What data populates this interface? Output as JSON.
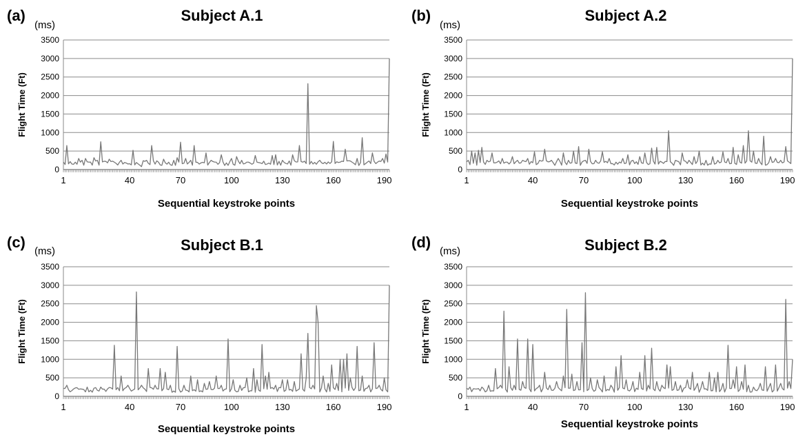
{
  "figure": {
    "background": "#ffffff",
    "line_color": "#777777",
    "grid_color": "#8a8a8a"
  },
  "chart_data": [
    {
      "type": "line",
      "panel_label": "(a)",
      "title": "Subject A.1",
      "unit": "(ms)",
      "xlabel": "Sequential keystroke points",
      "ylabel": "Flight Time (Ft)",
      "yticks": [
        "0",
        "500",
        "1000",
        "1500",
        "2000",
        "2500",
        "3000",
        "3500"
      ],
      "xticks": [
        "1",
        "40",
        "70",
        "100",
        "130",
        "160",
        "190"
      ],
      "ylim": [
        0,
        3500
      ],
      "grid": true,
      "n_points": 193,
      "spikes": [
        [
          3,
          650
        ],
        [
          8,
          200
        ],
        [
          10,
          300
        ],
        [
          12,
          250
        ],
        [
          14,
          300
        ],
        [
          16,
          200
        ],
        [
          19,
          320
        ],
        [
          21,
          250
        ],
        [
          23,
          750
        ],
        [
          26,
          220
        ],
        [
          28,
          280
        ],
        [
          31,
          200
        ],
        [
          35,
          250
        ],
        [
          39,
          150
        ],
        [
          42,
          520
        ],
        [
          47,
          80
        ],
        [
          50,
          250
        ],
        [
          53,
          650
        ],
        [
          57,
          200
        ],
        [
          60,
          280
        ],
        [
          63,
          200
        ],
        [
          66,
          250
        ],
        [
          68,
          320
        ],
        [
          70,
          740
        ],
        [
          73,
          300
        ],
        [
          76,
          250
        ],
        [
          78,
          650
        ],
        [
          82,
          180
        ],
        [
          85,
          450
        ],
        [
          88,
          250
        ],
        [
          91,
          200
        ],
        [
          94,
          400
        ],
        [
          97,
          180
        ],
        [
          100,
          300
        ],
        [
          103,
          350
        ],
        [
          106,
          250
        ],
        [
          110,
          200
        ],
        [
          114,
          380
        ],
        [
          117,
          180
        ],
        [
          121,
          150
        ],
        [
          124,
          380
        ],
        [
          126,
          400
        ],
        [
          130,
          250
        ],
        [
          133,
          150
        ],
        [
          136,
          400
        ],
        [
          140,
          650
        ],
        [
          142,
          200
        ],
        [
          145,
          2320
        ],
        [
          148,
          150
        ],
        [
          152,
          250
        ],
        [
          156,
          150
        ],
        [
          160,
          760
        ],
        [
          164,
          200
        ],
        [
          167,
          550
        ],
        [
          171,
          200
        ],
        [
          174,
          300
        ],
        [
          177,
          860
        ],
        [
          180,
          200
        ],
        [
          183,
          450
        ],
        [
          186,
          200
        ],
        [
          189,
          300
        ],
        [
          191,
          420
        ],
        [
          193,
          3000
        ]
      ]
    },
    {
      "type": "line",
      "panel_label": "(b)",
      "title": "Subject A.2",
      "unit": "(ms)",
      "xlabel": "Sequential keystroke points",
      "ylabel": "Flight Time (Ft)",
      "yticks": [
        "0",
        "500",
        "1000",
        "1500",
        "2000",
        "2500",
        "3000",
        "3500"
      ],
      "xticks": [
        "1",
        "40",
        "70",
        "100",
        "130",
        "160",
        "190"
      ],
      "ylim": [
        0,
        3500
      ],
      "grid": true,
      "n_points": 193,
      "spikes": [
        [
          2,
          250
        ],
        [
          4,
          500
        ],
        [
          6,
          450
        ],
        [
          8,
          520
        ],
        [
          10,
          600
        ],
        [
          13,
          250
        ],
        [
          16,
          450
        ],
        [
          19,
          200
        ],
        [
          22,
          300
        ],
        [
          25,
          200
        ],
        [
          28,
          350
        ],
        [
          31,
          250
        ],
        [
          34,
          250
        ],
        [
          37,
          300
        ],
        [
          41,
          480
        ],
        [
          44,
          250
        ],
        [
          47,
          550
        ],
        [
          51,
          250
        ],
        [
          55,
          300
        ],
        [
          58,
          450
        ],
        [
          61,
          250
        ],
        [
          64,
          500
        ],
        [
          67,
          620
        ],
        [
          71,
          250
        ],
        [
          73,
          550
        ],
        [
          77,
          250
        ],
        [
          81,
          480
        ],
        [
          85,
          300
        ],
        [
          89,
          200
        ],
        [
          93,
          300
        ],
        [
          96,
          400
        ],
        [
          99,
          250
        ],
        [
          103,
          350
        ],
        [
          106,
          450
        ],
        [
          110,
          580
        ],
        [
          113,
          600
        ],
        [
          116,
          200
        ],
        [
          120,
          1050
        ],
        [
          124,
          250
        ],
        [
          128,
          450
        ],
        [
          132,
          250
        ],
        [
          135,
          350
        ],
        [
          138,
          500
        ],
        [
          142,
          250
        ],
        [
          146,
          350
        ],
        [
          149,
          250
        ],
        [
          152,
          480
        ],
        [
          155,
          300
        ],
        [
          158,
          600
        ],
        [
          161,
          400
        ],
        [
          164,
          650
        ],
        [
          167,
          1050
        ],
        [
          170,
          500
        ],
        [
          173,
          300
        ],
        [
          176,
          900
        ],
        [
          180,
          350
        ],
        [
          183,
          300
        ],
        [
          186,
          250
        ],
        [
          189,
          620
        ],
        [
          191,
          200
        ],
        [
          193,
          3000
        ]
      ]
    },
    {
      "type": "line",
      "panel_label": "(c)",
      "title": "Subject B.1",
      "unit": "(ms)",
      "xlabel": "Sequential keystroke points",
      "ylabel": "Flight Time (Ft)",
      "yticks": [
        "0",
        "500",
        "1000",
        "1500",
        "2000",
        "2500",
        "3000",
        "3500"
      ],
      "xticks": [
        "1",
        "40",
        "70",
        "100",
        "130",
        "160",
        "190"
      ],
      "ylim": [
        0,
        3500
      ],
      "grid": true,
      "n_points": 193,
      "spikes": [
        [
          3,
          300
        ],
        [
          7,
          200
        ],
        [
          11,
          200
        ],
        [
          15,
          250
        ],
        [
          19,
          220
        ],
        [
          23,
          250
        ],
        [
          27,
          200
        ],
        [
          31,
          1380
        ],
        [
          35,
          550
        ],
        [
          39,
          300
        ],
        [
          44,
          2820
        ],
        [
          47,
          300
        ],
        [
          51,
          750
        ],
        [
          55,
          300
        ],
        [
          58,
          750
        ],
        [
          61,
          650
        ],
        [
          64,
          300
        ],
        [
          68,
          1350
        ],
        [
          72,
          300
        ],
        [
          76,
          550
        ],
        [
          80,
          450
        ],
        [
          84,
          350
        ],
        [
          87,
          400
        ],
        [
          91,
          550
        ],
        [
          94,
          300
        ],
        [
          98,
          1550
        ],
        [
          101,
          450
        ],
        [
          105,
          300
        ],
        [
          109,
          500
        ],
        [
          113,
          750
        ],
        [
          115,
          450
        ],
        [
          118,
          1400
        ],
        [
          120,
          550
        ],
        [
          122,
          650
        ],
        [
          126,
          300
        ],
        [
          130,
          450
        ],
        [
          133,
          450
        ],
        [
          137,
          400
        ],
        [
          141,
          1150
        ],
        [
          144,
          500
        ],
        [
          145,
          1700
        ],
        [
          148,
          300
        ],
        [
          150,
          2450
        ],
        [
          151,
          2000
        ],
        [
          154,
          550
        ],
        [
          157,
          350
        ],
        [
          159,
          850
        ],
        [
          162,
          350
        ],
        [
          164,
          1000
        ],
        [
          166,
          1000
        ],
        [
          168,
          1150
        ],
        [
          170,
          500
        ],
        [
          174,
          1350
        ],
        [
          177,
          550
        ],
        [
          181,
          300
        ],
        [
          184,
          1450
        ],
        [
          187,
          300
        ],
        [
          190,
          500
        ],
        [
          193,
          3000
        ]
      ]
    },
    {
      "type": "line",
      "panel_label": "(d)",
      "title": "Subject B.2",
      "unit": "(ms)",
      "xlabel": "Sequential keystroke points",
      "ylabel": "Flight Time (Ft)",
      "yticks": [
        "0",
        "500",
        "1000",
        "1500",
        "2000",
        "2500",
        "3000",
        "3500"
      ],
      "xticks": [
        "1",
        "40",
        "70",
        "100",
        "130",
        "160",
        "190"
      ],
      "ylim": [
        0,
        3500
      ],
      "grid": true,
      "n_points": 193,
      "spikes": [
        [
          3,
          250
        ],
        [
          6,
          200
        ],
        [
          10,
          250
        ],
        [
          14,
          300
        ],
        [
          18,
          750
        ],
        [
          21,
          300
        ],
        [
          23,
          2300
        ],
        [
          26,
          800
        ],
        [
          29,
          300
        ],
        [
          31,
          1550
        ],
        [
          34,
          400
        ],
        [
          37,
          1550
        ],
        [
          40,
          1400
        ],
        [
          44,
          300
        ],
        [
          47,
          650
        ],
        [
          50,
          300
        ],
        [
          54,
          400
        ],
        [
          58,
          550
        ],
        [
          60,
          2350
        ],
        [
          63,
          600
        ],
        [
          66,
          400
        ],
        [
          69,
          1450
        ],
        [
          71,
          2800
        ],
        [
          74,
          500
        ],
        [
          78,
          450
        ],
        [
          82,
          550
        ],
        [
          86,
          300
        ],
        [
          89,
          800
        ],
        [
          92,
          1100
        ],
        [
          95,
          450
        ],
        [
          99,
          400
        ],
        [
          103,
          650
        ],
        [
          106,
          1100
        ],
        [
          108,
          300
        ],
        [
          110,
          1300
        ],
        [
          113,
          400
        ],
        [
          116,
          300
        ],
        [
          119,
          850
        ],
        [
          121,
          800
        ],
        [
          124,
          400
        ],
        [
          127,
          300
        ],
        [
          131,
          450
        ],
        [
          134,
          650
        ],
        [
          137,
          350
        ],
        [
          140,
          400
        ],
        [
          144,
          650
        ],
        [
          147,
          500
        ],
        [
          149,
          650
        ],
        [
          152,
          350
        ],
        [
          155,
          1380
        ],
        [
          158,
          450
        ],
        [
          160,
          800
        ],
        [
          163,
          400
        ],
        [
          165,
          850
        ],
        [
          167,
          300
        ],
        [
          170,
          250
        ],
        [
          174,
          350
        ],
        [
          177,
          800
        ],
        [
          180,
          350
        ],
        [
          183,
          850
        ],
        [
          186,
          350
        ],
        [
          189,
          2620
        ],
        [
          191,
          400
        ],
        [
          193,
          1000
        ]
      ]
    }
  ]
}
